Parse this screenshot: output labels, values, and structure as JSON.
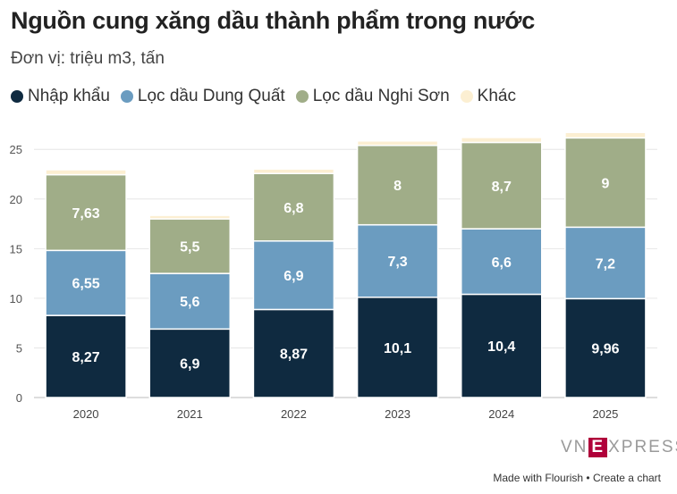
{
  "title": "Nguồn cung xăng dầu thành phẩm trong nước",
  "subtitle": "Đơn vị: triệu m3, tấn",
  "logo": {
    "prefix": "VN",
    "mark": "E",
    "suffix": "XPRESS"
  },
  "footer": {
    "made_with": "Made with Flourish",
    "separator": "•",
    "create": "Create a chart"
  },
  "chart_data": {
    "type": "bar",
    "stacked": true,
    "categories": [
      "2020",
      "2021",
      "2022",
      "2023",
      "2024",
      "2025"
    ],
    "ylim": [
      0,
      27
    ],
    "yticks": [
      0,
      5,
      10,
      15,
      20,
      25
    ],
    "grid": true,
    "legend_position": "top-left",
    "series": [
      {
        "name": "Nhập khẩu",
        "color": "#0f2a40",
        "values": [
          8.27,
          6.9,
          8.87,
          10.1,
          10.4,
          9.96
        ],
        "labels": [
          "8,27",
          "6,9",
          "8,87",
          "10,1",
          "10,4",
          "9,96"
        ]
      },
      {
        "name": "Lọc dầu Dung Quất",
        "color": "#6b9cc0",
        "values": [
          6.55,
          5.6,
          6.9,
          7.3,
          6.6,
          7.2
        ],
        "labels": [
          "6,55",
          "5,6",
          "6,9",
          "7,3",
          "6,6",
          "7,2"
        ]
      },
      {
        "name": "Lọc dầu Nghi Sơn",
        "color": "#a0ad88",
        "values": [
          7.63,
          5.5,
          6.8,
          8,
          8.7,
          9
        ],
        "labels": [
          "7,63",
          "5,5",
          "6,8",
          "8",
          "8,7",
          "9"
        ]
      },
      {
        "name": "Khác",
        "color": "#fcefd2",
        "values": [
          0.5,
          0.35,
          0.45,
          0.45,
          0.5,
          0.55
        ],
        "labels": [
          "",
          "",
          "",
          "",
          "",
          ""
        ]
      }
    ]
  }
}
